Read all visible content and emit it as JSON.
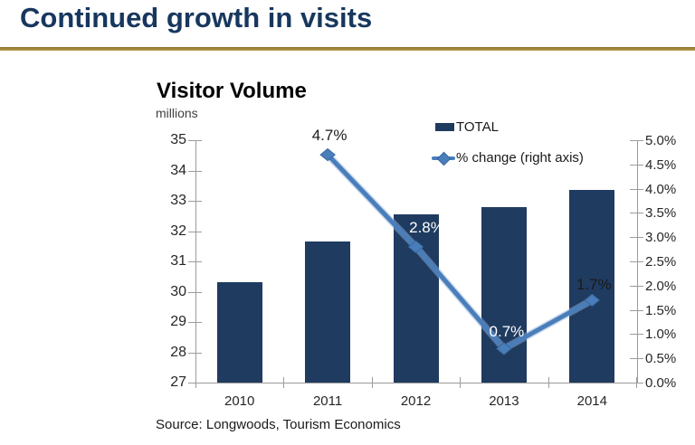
{
  "header": {
    "title": "Continued growth in visits"
  },
  "chart": {
    "title": "Visitor Volume",
    "subtitle": "millions",
    "legend": [
      {
        "label": "TOTAL"
      },
      {
        "label": "% change (right axis)"
      }
    ],
    "source": "Source: Longwoods, Tourism Economics"
  },
  "chart_data": {
    "type": "bar+line",
    "title": "Visitor Volume",
    "unit": "millions",
    "categories": [
      "2010",
      "2011",
      "2012",
      "2013",
      "2014"
    ],
    "series": [
      {
        "name": "TOTAL",
        "type": "bar",
        "axis": "left",
        "values": [
          30.3,
          31.67,
          32.56,
          32.8,
          33.35
        ],
        "color": "#1F3B60"
      },
      {
        "name": "% change (right axis)",
        "type": "line",
        "axis": "right",
        "values": [
          null,
          4.7,
          2.8,
          0.7,
          1.7
        ],
        "point_labels": [
          "",
          "4.7%",
          "2.8%",
          "0.7%",
          "1.7%"
        ],
        "point_label_colors": [
          "",
          "#1a1a1a",
          "#ffffff",
          "#ffffff",
          "#1a1a1a"
        ],
        "color": "#4A7EBB"
      }
    ],
    "left_axis": {
      "min": 27,
      "max": 35,
      "step": 1,
      "ticks": [
        "35",
        "34",
        "33",
        "32",
        "31",
        "30",
        "29",
        "28",
        "27"
      ]
    },
    "right_axis": {
      "min": 0,
      "max": 5,
      "step": 0.5,
      "ticks": [
        "5.0%",
        "4.5%",
        "4.0%",
        "3.5%",
        "3.0%",
        "2.5%",
        "2.0%",
        "1.5%",
        "1.0%",
        "0.5%",
        "0.0%"
      ]
    },
    "legend_position": "top-right",
    "grid": false,
    "source": "Source: Longwoods, Tourism Economics"
  },
  "colors": {
    "title_navy": "#17375E",
    "gold_rule": "#A3873B",
    "bar_navy": "#1F3B60",
    "line_blue": "#4A7EBB",
    "axis_gray": "#9C9C9C"
  }
}
